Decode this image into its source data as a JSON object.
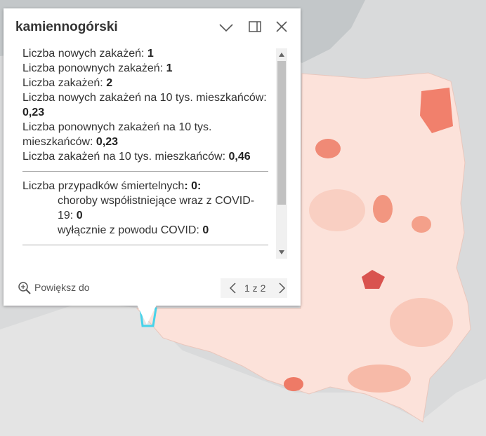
{
  "popup": {
    "title": "kamiennogórski",
    "fields": [
      {
        "label": "Liczba nowych zakażeń: ",
        "value": "1"
      },
      {
        "label": "Liczba ponownych zakażeń: ",
        "value": "1"
      },
      {
        "label": "Liczba zakażeń: ",
        "value": "2"
      },
      {
        "label": "Liczba nowych zakażeń na 10 tys. mieszkańców: ",
        "value": "0,23"
      },
      {
        "label": "Liczba ponownych zakażeń na 10 tys. mieszkańców: ",
        "value": "0,23"
      },
      {
        "label": "Liczba zakażeń na 10 tys. mieszkańców: ",
        "value": "0,46"
      }
    ],
    "deaths": {
      "label": "Liczba przypadków śmiertelnych",
      "value": ": 0:",
      "details": [
        {
          "label": "choroby współistniejące wraz z COVID-19: ",
          "value": "0"
        },
        {
          "label": "wyłącznie z powodu COVID: ",
          "value": "0"
        }
      ]
    },
    "zoom": "Powiększ do",
    "pager": "1 z 2"
  }
}
